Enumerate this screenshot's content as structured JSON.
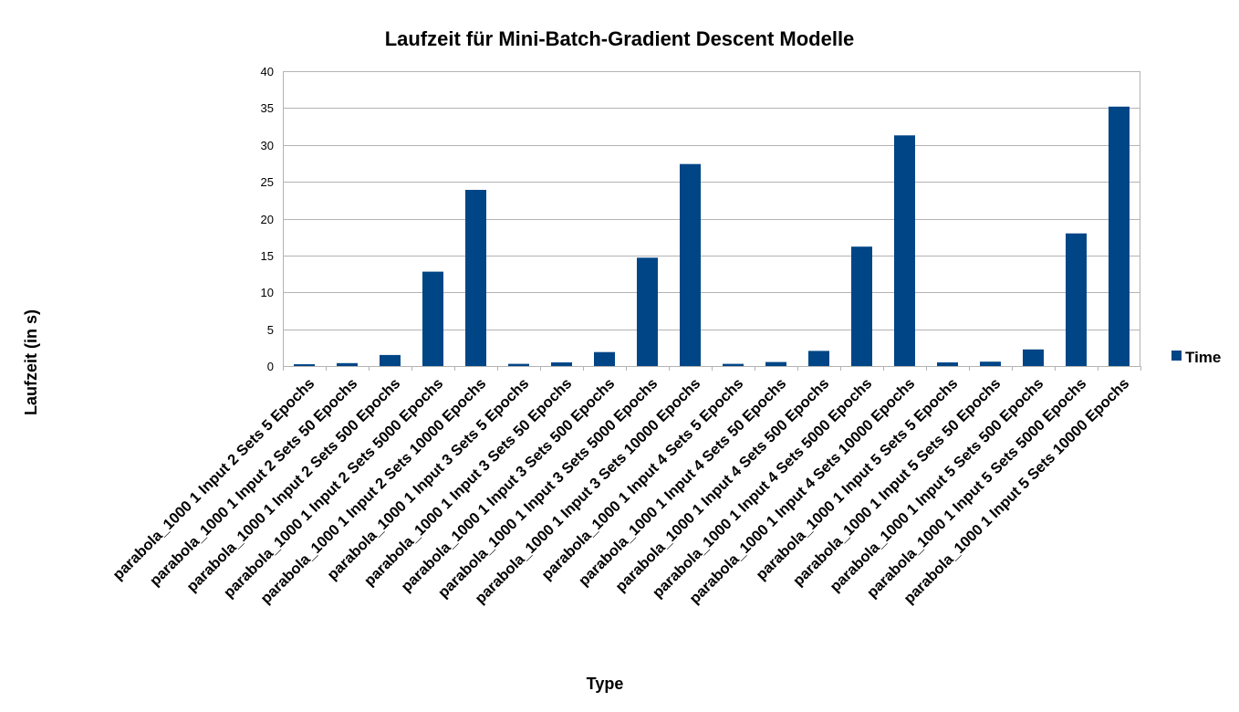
{
  "chart_data": {
    "type": "bar",
    "title": "Laufzeit für Mini-Batch-Gradient Descent Modelle",
    "xlabel": "Type",
    "ylabel": "Laufzeit (in s)",
    "ylim": [
      0,
      40
    ],
    "yticks": [
      "0",
      "5",
      "10",
      "15",
      "20",
      "25",
      "30",
      "35",
      "40"
    ],
    "grid": true,
    "legend_position": "right",
    "bar_color": "#004586",
    "categories": [
      "parabola_1000 1 Input 2 Sets 5 Epochs",
      "parabola_1000 1 Input 2 Sets 50 Epochs",
      "parabola_1000 1 Input 2 Sets 500 Epochs",
      "parabola_1000 1 Input 2 Sets 5000 Epochs",
      "parabola_1000 1 Input 2 Sets 10000 Epochs",
      "parabola_1000 1 Input 3 Sets 5 Epochs",
      "parabola_1000 1 Input 3 Sets 50 Epochs",
      "parabola_1000 1 Input 3 Sets 500 Epochs",
      "parabola_1000 1 Input 3 Sets 5000 Epochs",
      "parabola_1000 1 Input 3 Sets 10000 Epochs",
      "parabola_1000 1 Input 4 Sets 5 Epochs",
      "parabola_1000 1 Input 4 Sets 50 Epochs",
      "parabola_1000 1 Input 4 Sets 500 Epochs",
      "parabola_1000 1 Input 4 Sets 5000 Epochs",
      "parabola_1000 1 Input 4 Sets 10000 Epochs",
      "parabola_1000 1 Input 5 Sets 5 Epochs",
      "parabola_1000 1 Input 5 Sets 50 Epochs",
      "parabola_1000 1 Input 5 Sets 500 Epochs",
      "parabola_1000 1 Input 5 Sets 5000 Epochs",
      "parabola_1000 1 Input 5 Sets 10000 Epochs"
    ],
    "series": [
      {
        "name": "Time",
        "values": [
          0.25,
          0.4,
          1.5,
          12.8,
          23.9,
          0.3,
          0.5,
          1.9,
          14.7,
          27.4,
          0.3,
          0.55,
          2.05,
          16.2,
          31.3,
          0.5,
          0.6,
          2.25,
          18.0,
          35.2
        ]
      }
    ]
  }
}
